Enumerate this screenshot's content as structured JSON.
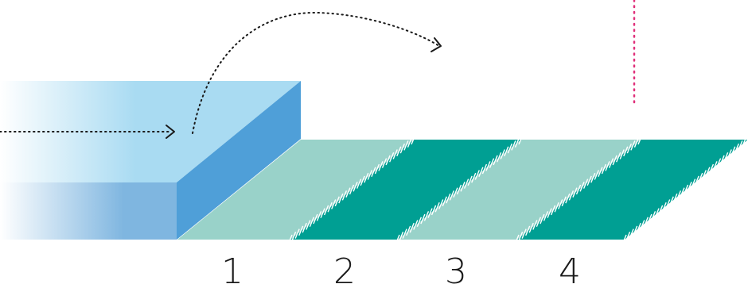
{
  "colors": {
    "block_top": "#a9dbf2",
    "block_side": "#4f9fd8",
    "block_front": "#7fb6e0",
    "stripe_light": "#99d2c9",
    "stripe_dark": "#009f93",
    "pink_line": "#e0307a",
    "arrow": "#1a1a1a",
    "hatch": "#ffffff"
  },
  "stripes": [
    {
      "shade": "light"
    },
    {
      "shade": "dark"
    },
    {
      "shade": "light"
    },
    {
      "shade": "dark"
    }
  ],
  "labels": [
    "1",
    "2",
    "3",
    "4"
  ]
}
